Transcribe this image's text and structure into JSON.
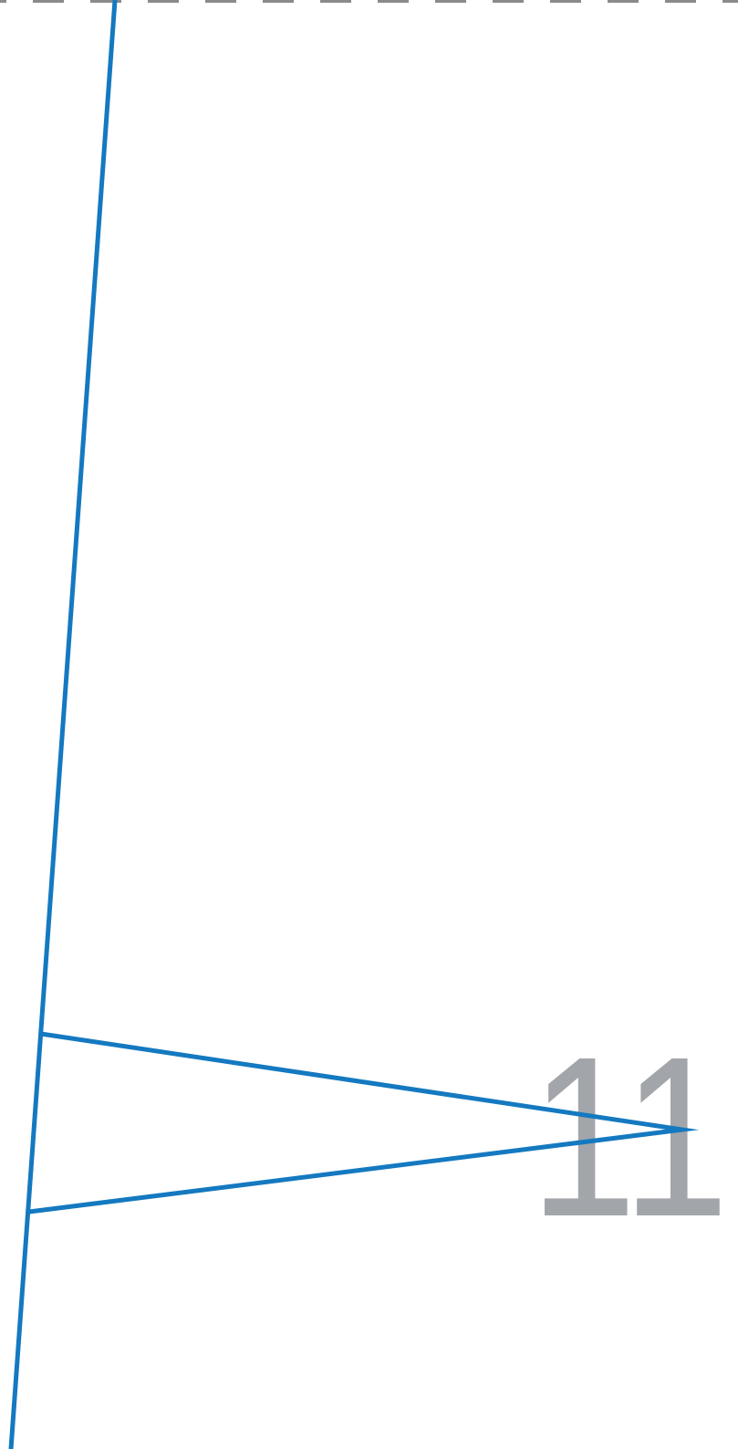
{
  "label": "11",
  "colors": {
    "background": "#ffffff",
    "line": "#1479c0",
    "dashed_rule": "#8a8a8a",
    "label": "#a2a5a9"
  }
}
